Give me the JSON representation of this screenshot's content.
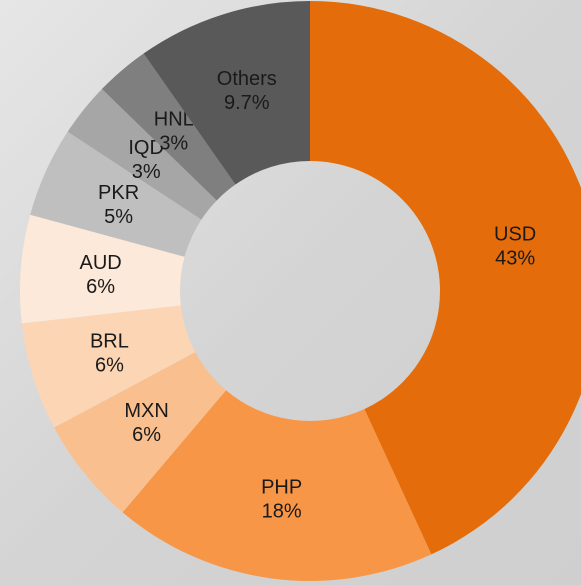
{
  "chart_data": {
    "type": "donut",
    "categories": [
      "USD",
      "PHP",
      "MXN",
      "BRL",
      "AUD",
      "PKR",
      "IQD",
      "HNL",
      "Others"
    ],
    "values": [
      43,
      18,
      6,
      6,
      6,
      5,
      3,
      3,
      9.7
    ],
    "value_labels": [
      "43%",
      "18%",
      "6%",
      "6%",
      "6%",
      "5%",
      "3%",
      "3%",
      "9.7%"
    ],
    "colors": [
      "#e46c0a",
      "#f79646",
      "#fabf8f",
      "#fcd5b4",
      "#fde9d9",
      "#bfbfbf",
      "#a6a6a6",
      "#7f7f7f",
      "#595959"
    ]
  }
}
